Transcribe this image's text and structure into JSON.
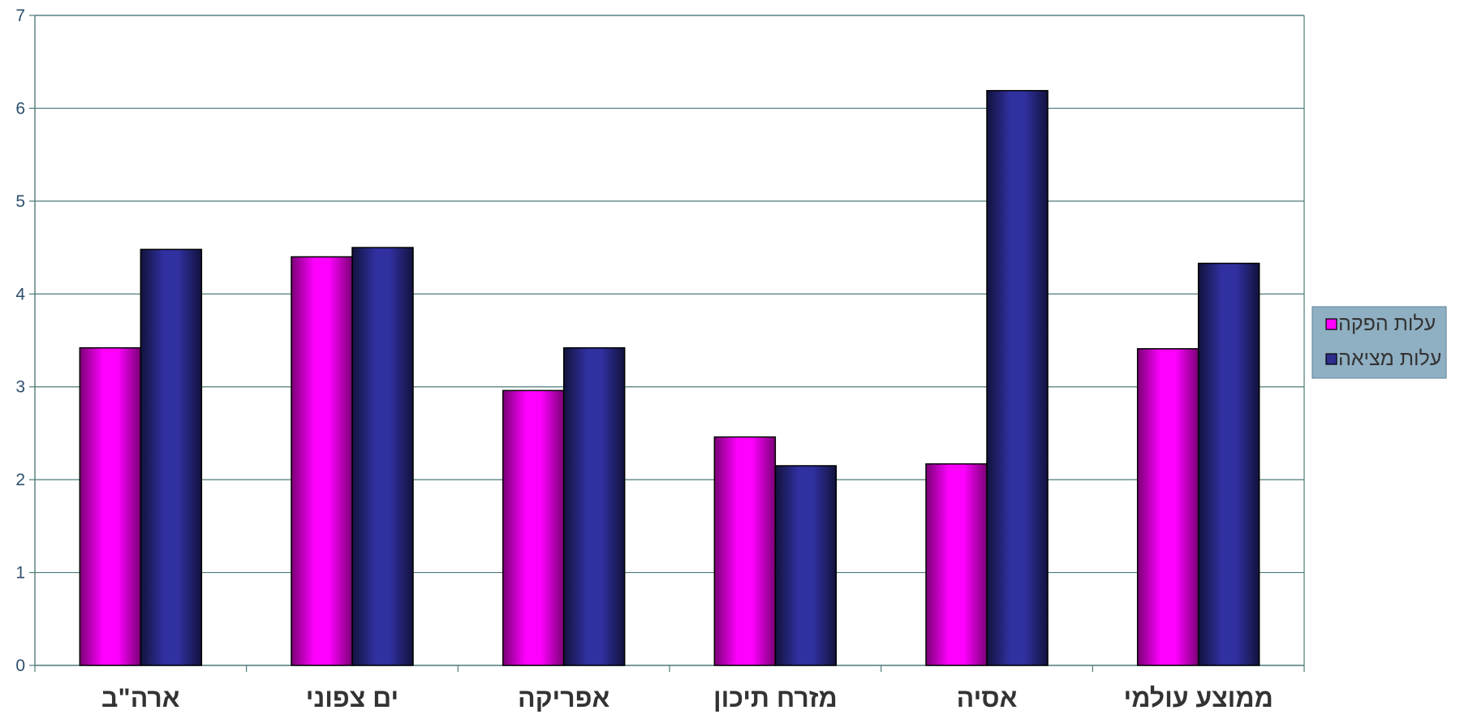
{
  "chart_data": {
    "type": "bar",
    "title": "",
    "xlabel": "",
    "ylabel": "",
    "ylim": [
      0,
      7
    ],
    "yticks": [
      "0",
      "1",
      "2",
      "3",
      "4",
      "5",
      "6",
      "7"
    ],
    "categories": [
      "ארה\"ב",
      "ים צפוני",
      "אפריקה",
      "מזרח תיכון",
      "אסיה",
      "ממוצע עולמי"
    ],
    "series": [
      {
        "name": "עלות הפקה",
        "values": [
          3.42,
          4.4,
          2.96,
          2.46,
          2.17,
          3.41
        ],
        "color": "#ff00ff"
      },
      {
        "name": "עלות מציאה",
        "values": [
          4.48,
          4.5,
          3.42,
          2.15,
          6.19,
          4.33
        ],
        "color": "#2e2e8c"
      }
    ],
    "grid": true,
    "legend_position": "right",
    "colors": {
      "gridline": "#4f7a7a",
      "axis": "#4f7a7a",
      "legend_bg": "#8fafc2",
      "bar_edge": "#000000"
    }
  }
}
